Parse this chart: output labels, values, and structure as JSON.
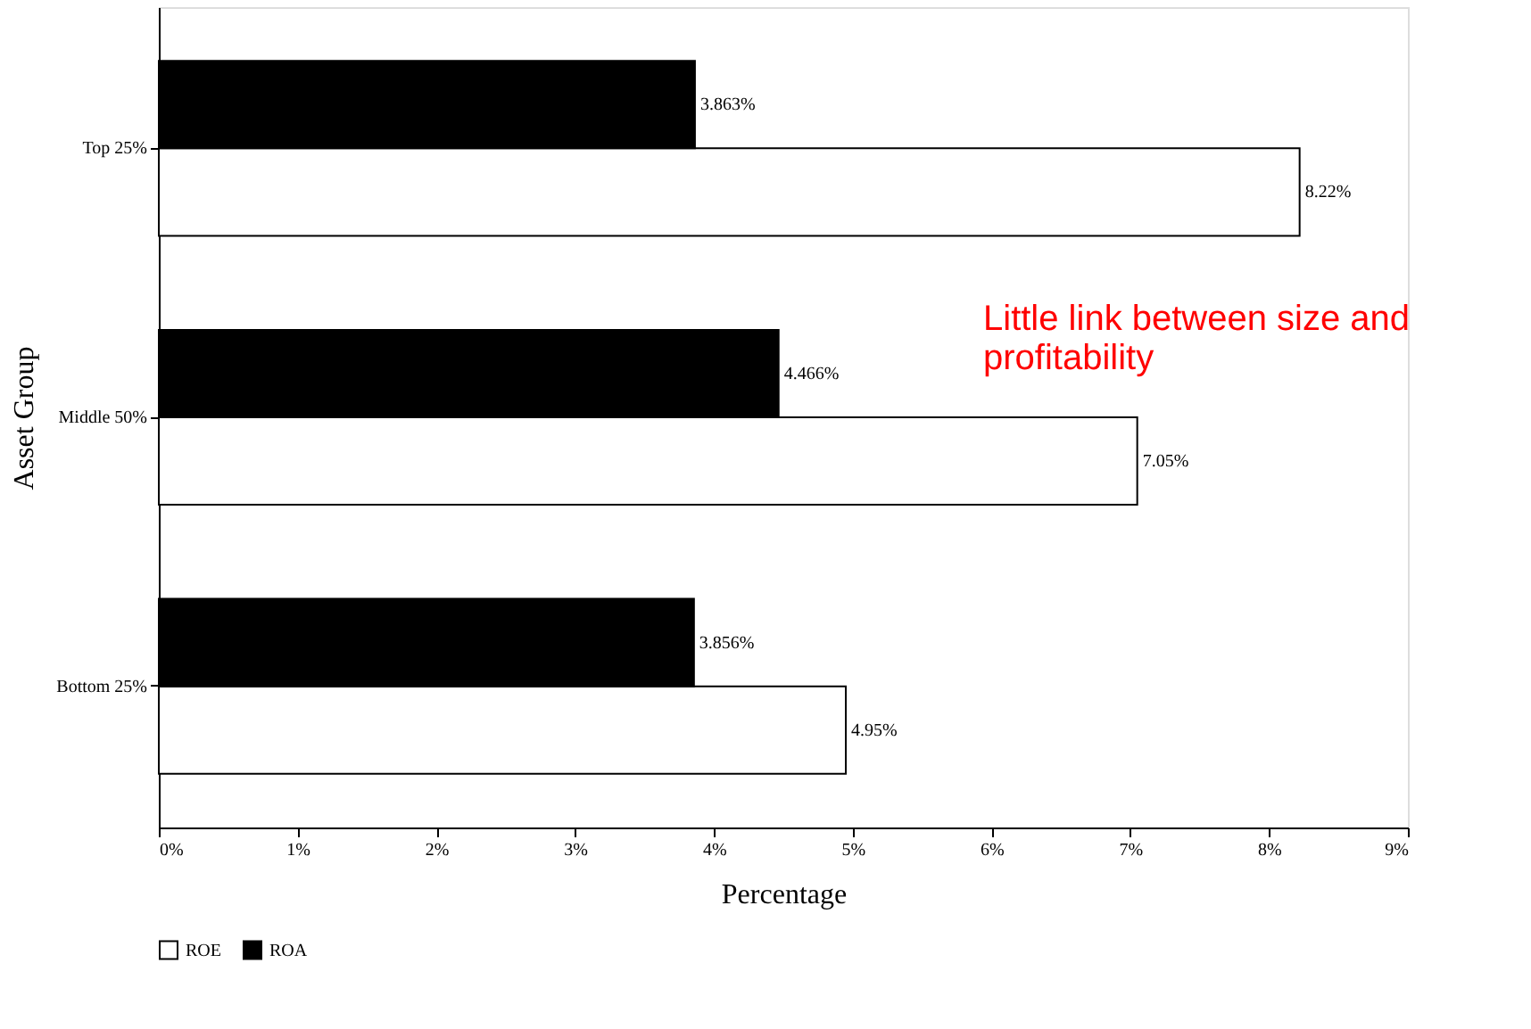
{
  "chart_data": {
    "type": "bar",
    "orientation": "horizontal",
    "xlabel": "Percentage",
    "ylabel": "Asset Group",
    "categories": [
      "Top 25%",
      "Middle 50%",
      "Bottom 25%"
    ],
    "series": [
      {
        "name": "ROE",
        "color": "#ffffff",
        "values": [
          8.22,
          7.05,
          4.95
        ],
        "value_labels": [
          "8.22%",
          "7.05%",
          "4.95%"
        ]
      },
      {
        "name": "ROA",
        "color": "#000000",
        "values": [
          3.863,
          4.466,
          3.856
        ],
        "value_labels": [
          "3.863%",
          "4.466%",
          "3.856%"
        ]
      }
    ],
    "xlim": [
      0,
      9
    ],
    "xticks": [
      {
        "value": 0,
        "label": "0%"
      },
      {
        "value": 1,
        "label": "1%"
      },
      {
        "value": 2,
        "label": "2%"
      },
      {
        "value": 3,
        "label": "3%"
      },
      {
        "value": 4,
        "label": "4%"
      },
      {
        "value": 5,
        "label": "5%"
      },
      {
        "value": 6,
        "label": "6%"
      },
      {
        "value": 7,
        "label": "7%"
      },
      {
        "value": 8,
        "label": "8%"
      },
      {
        "value": 9,
        "label": "9%"
      }
    ],
    "annotations": [
      "Little link between size and profitability"
    ],
    "legend": "bottom",
    "grid": false
  }
}
